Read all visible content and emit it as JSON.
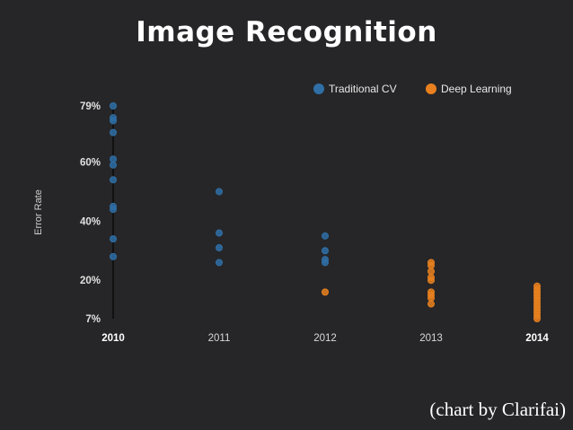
{
  "title": "Image Recognition",
  "credit": "(chart by Clarifai)",
  "colors": {
    "background": "#262628",
    "traditional": "#2f6fa6",
    "deep": "#e8801f",
    "axis": "#111111"
  },
  "chart_data": {
    "type": "scatter",
    "ylabel": "Error Rate",
    "x_categories": [
      "2010",
      "2011",
      "2012",
      "2013",
      "2014"
    ],
    "bold_categories": [
      "2010",
      "2014"
    ],
    "y_ticks": [
      "79%",
      "60%",
      "40%",
      "20%",
      "7%"
    ],
    "y_tick_values": [
      79,
      60,
      40,
      20,
      7
    ],
    "ylim": [
      7,
      79
    ],
    "legend_position": "top-right",
    "grid": false,
    "series": [
      {
        "name": "Traditional CV",
        "color_key": "traditional",
        "points": [
          {
            "x": "2010",
            "y": 79
          },
          {
            "x": "2010",
            "y": 75
          },
          {
            "x": "2010",
            "y": 74
          },
          {
            "x": "2010",
            "y": 70
          },
          {
            "x": "2010",
            "y": 61
          },
          {
            "x": "2010",
            "y": 59
          },
          {
            "x": "2010",
            "y": 54
          },
          {
            "x": "2010",
            "y": 45
          },
          {
            "x": "2010",
            "y": 44
          },
          {
            "x": "2010",
            "y": 34
          },
          {
            "x": "2010",
            "y": 28
          },
          {
            "x": "2011",
            "y": 50
          },
          {
            "x": "2011",
            "y": 36
          },
          {
            "x": "2011",
            "y": 31
          },
          {
            "x": "2011",
            "y": 26
          },
          {
            "x": "2012",
            "y": 35
          },
          {
            "x": "2012",
            "y": 30
          },
          {
            "x": "2012",
            "y": 27
          },
          {
            "x": "2012",
            "y": 26
          }
        ]
      },
      {
        "name": "Deep Learning",
        "color_key": "deep",
        "points": [
          {
            "x": "2012",
            "y": 16
          },
          {
            "x": "2013",
            "y": 26
          },
          {
            "x": "2013",
            "y": 25
          },
          {
            "x": "2013",
            "y": 23
          },
          {
            "x": "2013",
            "y": 21
          },
          {
            "x": "2013",
            "y": 20
          },
          {
            "x": "2013",
            "y": 16
          },
          {
            "x": "2013",
            "y": 15
          },
          {
            "x": "2013",
            "y": 14
          },
          {
            "x": "2013",
            "y": 12
          },
          {
            "x": "2014",
            "y": 18
          },
          {
            "x": "2014",
            "y": 17
          },
          {
            "x": "2014",
            "y": 16
          },
          {
            "x": "2014",
            "y": 15
          },
          {
            "x": "2014",
            "y": 14
          },
          {
            "x": "2014",
            "y": 13
          },
          {
            "x": "2014",
            "y": 12
          },
          {
            "x": "2014",
            "y": 11
          },
          {
            "x": "2014",
            "y": 10
          },
          {
            "x": "2014",
            "y": 9
          },
          {
            "x": "2014",
            "y": 8
          },
          {
            "x": "2014",
            "y": 7
          }
        ]
      }
    ]
  }
}
